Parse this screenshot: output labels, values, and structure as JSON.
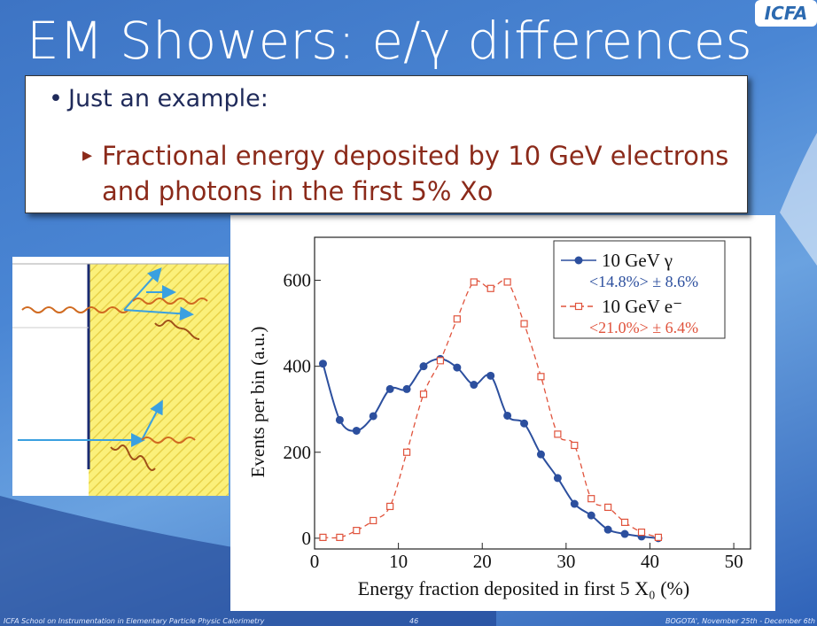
{
  "slide": {
    "title": "EM Showers: e/γ differences",
    "logo": "ICFA",
    "bullets": [
      "Just an example:",
      "Fractional energy deposited by 10 GeV electrons and photons in the first 5% Xo"
    ],
    "footer_left": "ICFA School on Instrumentation in Elementary Particle Physic Calorimetry",
    "page": "46",
    "footer_right": "BOGOTA', November 25th - December 6th"
  },
  "chart_data": {
    "type": "scatter",
    "xlabel": "Energy fraction deposited in first 5 X₀ (%)",
    "ylabel": "Events per bin (a.u.)",
    "xlim": [
      0,
      52
    ],
    "xticks": [
      0,
      10,
      20,
      30,
      40,
      50
    ],
    "ylim": [
      -25,
      700
    ],
    "yticks": [
      0,
      200,
      400,
      600
    ],
    "series": [
      {
        "name": "10 GeV γ",
        "legend_note": "<14.8%> ± 8.6%",
        "color": "#2c4f9e",
        "marker": "filled-circle",
        "line": "solid",
        "x": [
          1,
          3,
          5,
          7,
          9,
          11,
          13,
          15,
          17,
          19,
          21,
          23,
          25,
          27,
          29,
          31,
          33,
          35,
          37,
          39,
          41
        ],
        "values": [
          406,
          275,
          250,
          284,
          347,
          347,
          400,
          417,
          397,
          357,
          378,
          285,
          267,
          195,
          140,
          80,
          53,
          20,
          10,
          4,
          0
        ]
      },
      {
        "name": "10 GeV e⁻",
        "legend_note": "<21.0%> ± 6.4%",
        "color": "#e0533c",
        "marker": "open-square",
        "line": "dashed",
        "x": [
          1,
          3,
          5,
          7,
          9,
          11,
          13,
          15,
          17,
          19,
          21,
          23,
          25,
          27,
          29,
          31,
          33,
          35,
          37,
          39,
          41
        ],
        "values": [
          2,
          2,
          18,
          41,
          74,
          200,
          335,
          413,
          510,
          596,
          581,
          596,
          499,
          376,
          242,
          216,
          92,
          72,
          37,
          14,
          2
        ]
      }
    ]
  }
}
